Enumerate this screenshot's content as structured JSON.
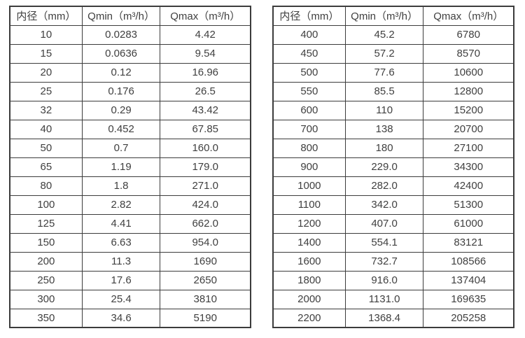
{
  "colors": {
    "border": "#3c3c3c",
    "text": "#404040",
    "background": "#ffffff"
  },
  "tables": [
    {
      "name": "flow-spec-table-small-diameter",
      "headers": [
        "内径（mm）",
        "Qmin（m³/h）",
        "Qmax（m³/h）"
      ],
      "rows": [
        [
          "10",
          "0.0283",
          "4.42"
        ],
        [
          "15",
          "0.0636",
          "9.54"
        ],
        [
          "20",
          "0.12",
          "16.96"
        ],
        [
          "25",
          "0.176",
          "26.5"
        ],
        [
          "32",
          "0.29",
          "43.42"
        ],
        [
          "40",
          "0.452",
          "67.85"
        ],
        [
          "50",
          "0.7",
          "160.0"
        ],
        [
          "65",
          "1.19",
          "179.0"
        ],
        [
          "80",
          "1.8",
          "271.0"
        ],
        [
          "100",
          "2.82",
          "424.0"
        ],
        [
          "125",
          "4.41",
          "662.0"
        ],
        [
          "150",
          "6.63",
          "954.0"
        ],
        [
          "200",
          "11.3",
          "1690"
        ],
        [
          "250",
          "17.6",
          "2650"
        ],
        [
          "300",
          "25.4",
          "3810"
        ],
        [
          "350",
          "34.6",
          "5190"
        ]
      ]
    },
    {
      "name": "flow-spec-table-large-diameter",
      "headers": [
        "内径（mm）",
        "Qmin（m³/h）",
        "Qmax（m³/h）"
      ],
      "rows": [
        [
          "400",
          "45.2",
          "6780"
        ],
        [
          "450",
          "57.2",
          "8570"
        ],
        [
          "500",
          "77.6",
          "10600"
        ],
        [
          "550",
          "85.5",
          "12800"
        ],
        [
          "600",
          "110",
          "15200"
        ],
        [
          "700",
          "138",
          "20700"
        ],
        [
          "800",
          "180",
          "27100"
        ],
        [
          "900",
          "229.0",
          "34300"
        ],
        [
          "1000",
          "282.0",
          "42400"
        ],
        [
          "1100",
          "342.0",
          "51300"
        ],
        [
          "1200",
          "407.0",
          "61000"
        ],
        [
          "1400",
          "554.1",
          "83121"
        ],
        [
          "1600",
          "732.7",
          "108566"
        ],
        [
          "1800",
          "916.0",
          "137404"
        ],
        [
          "2000",
          "1131.0",
          "169635"
        ],
        [
          "2200",
          "1368.4",
          "205258"
        ]
      ]
    }
  ],
  "chart_data": [
    {
      "type": "table",
      "title": "",
      "columns": [
        "内径（mm）",
        "Qmin（m³/h）",
        "Qmax（m³/h）"
      ],
      "inner_diameter_mm": [
        10,
        15,
        20,
        25,
        32,
        40,
        50,
        65,
        80,
        100,
        125,
        150,
        200,
        250,
        300,
        350
      ],
      "qmin_m3h": [
        0.0283,
        0.0636,
        0.12,
        0.176,
        0.29,
        0.452,
        0.7,
        1.19,
        1.8,
        2.82,
        4.41,
        6.63,
        11.3,
        17.6,
        25.4,
        34.6
      ],
      "qmax_m3h": [
        4.42,
        9.54,
        16.96,
        26.5,
        43.42,
        67.85,
        160.0,
        179.0,
        271.0,
        424.0,
        662.0,
        954.0,
        1690,
        2650,
        3810,
        5190
      ]
    },
    {
      "type": "table",
      "title": "",
      "columns": [
        "内径（mm）",
        "Qmin（m³/h）",
        "Qmax（m³/h）"
      ],
      "inner_diameter_mm": [
        400,
        450,
        500,
        550,
        600,
        700,
        800,
        900,
        1000,
        1100,
        1200,
        1400,
        1600,
        1800,
        2000,
        2200
      ],
      "qmin_m3h": [
        45.2,
        57.2,
        77.6,
        85.5,
        110,
        138,
        180,
        229.0,
        282.0,
        342.0,
        407.0,
        554.1,
        732.7,
        916.0,
        1131.0,
        1368.4
      ],
      "qmax_m3h": [
        6780,
        8570,
        10600,
        12800,
        15200,
        20700,
        27100,
        34300,
        42400,
        51300,
        61000,
        83121,
        108566,
        137404,
        169635,
        205258
      ]
    }
  ]
}
